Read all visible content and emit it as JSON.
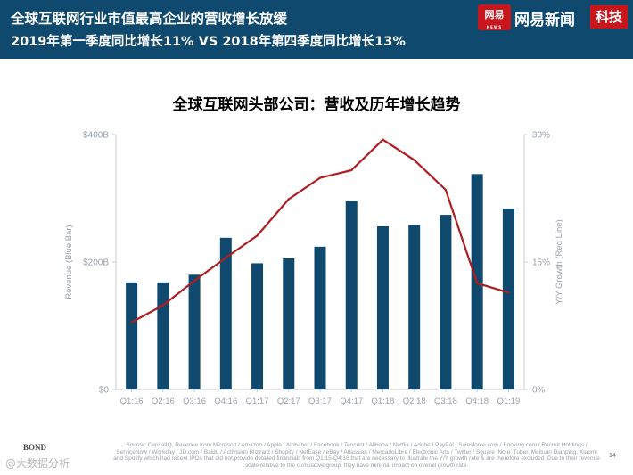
{
  "header": {
    "line1": "全球互联网行业市值最高企业的营收增长放缓",
    "line2": "2019年第一季度同比增长11% VS 2018年第四季度同比增长13%",
    "brand_logo_text": "网易",
    "brand_logo_sub": "NEWS",
    "brand_name": "网易新闻",
    "brand_tag": "科技",
    "bg_color": "#0f4a6e",
    "brand_color": "#c8161d"
  },
  "chart_data": {
    "type": "bar",
    "title": "全球互联网头部公司：营收及历年增长趋势",
    "categories": [
      "Q1:16",
      "Q2:16",
      "Q3:16",
      "Q4:16",
      "Q1:17",
      "Q2:17",
      "Q3:17",
      "Q4:17",
      "Q1:18",
      "Q2:18",
      "Q3:18",
      "Q4:18",
      "Q1:19"
    ],
    "series": [
      {
        "kind": "bar",
        "axis": "left",
        "color": "#0f4a6e",
        "values": [
          168,
          168,
          180,
          238,
          198,
          206,
          224,
          296,
          256,
          258,
          274,
          338,
          284
        ]
      },
      {
        "kind": "line",
        "axis": "right",
        "color": "#b01c22",
        "values": [
          7.9,
          9.9,
          12.8,
          15.5,
          18.1,
          22.4,
          24.9,
          25.8,
          29.4,
          27.0,
          23.5,
          12.5,
          11.4
        ]
      }
    ],
    "y_left": {
      "label": "Revenue (Blue Bar)",
      "min": 0,
      "max": 400,
      "ticks": [
        "$0",
        "$200B",
        "$400B"
      ]
    },
    "y_right": {
      "label": "Y/Y Growth (Red Line)",
      "min": 0,
      "max": 30,
      "ticks": [
        "0%",
        "15%",
        "30%"
      ]
    },
    "grid": false
  },
  "footer": {
    "source": "Source: CapitalIQ. Revenue from Microsoft / Amazon / Apple / Alphabet / Facebook / Tencent / Alibaba / Netflix / Adobe / PayPal / Salesforce.com / Booking.com / Recruit Holdings / ServiceNow / Workday / JD.com / Baidu / Activision Blizzard / Shopify / NetEase / eBay / Atlassian / MercadoLibre / Electronic Arts / Twitter / Square. Note: Tuber, Meituan Dianping, Xiaomi and Spotify which had recent IPOs that did not provide detailed financials from Q1:15-Q4:16 that are necessary to illustrate the Y/Y growth rate & are therefore excluded. Due to their revenue scale relative to the cumulative group, they have minimal impact on overall growth rate.",
    "page_number": "14",
    "left_logo": "BOND",
    "watermark": "@大数据分析"
  }
}
